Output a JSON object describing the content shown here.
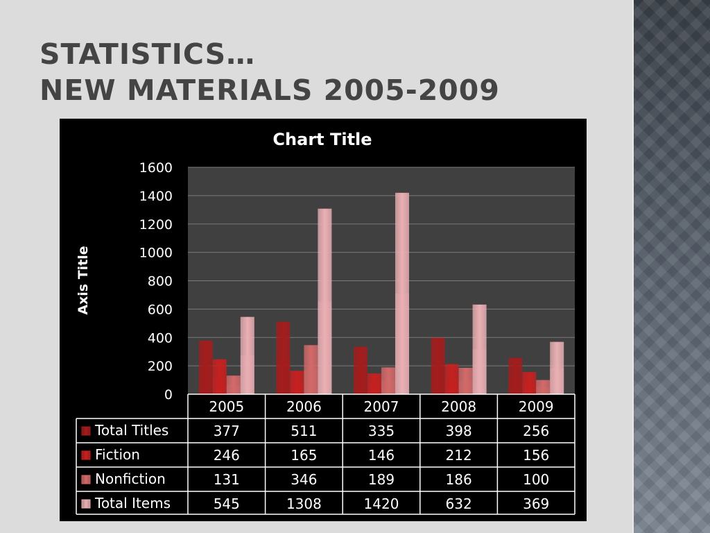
{
  "slide": {
    "title_line1": "STATISTICS…",
    "title_line2": "NEW MATERIALS 2005-2009"
  },
  "chart_data": {
    "type": "bar",
    "title": "Chart Title",
    "xlabel": "",
    "ylabel": "Axis Title",
    "ylim": [
      0,
      1600
    ],
    "yticks": [
      0,
      200,
      400,
      600,
      800,
      1000,
      1200,
      1400,
      1600
    ],
    "grid": true,
    "legend": "data-table-left",
    "categories": [
      "2005",
      "2006",
      "2007",
      "2008",
      "2009"
    ],
    "series": [
      {
        "name": "Total Titles",
        "values": [
          377,
          511,
          335,
          398,
          256
        ],
        "color": "#a51c1c"
      },
      {
        "name": "Fiction",
        "values": [
          246,
          165,
          146,
          212,
          156
        ],
        "color": "#c82020"
      },
      {
        "name": "Nonfiction",
        "values": [
          131,
          346,
          189,
          186,
          100
        ],
        "color": "#d46a6a"
      },
      {
        "name": "Total Items",
        "values": [
          545,
          1308,
          1420,
          632,
          369
        ],
        "color": "#eab0b4"
      }
    ],
    "colors": {
      "background": "#000000",
      "plot_area": "#404040",
      "gridline": "#7a7a7a",
      "table_border": "#ffffff",
      "text": "#ffffff"
    }
  }
}
